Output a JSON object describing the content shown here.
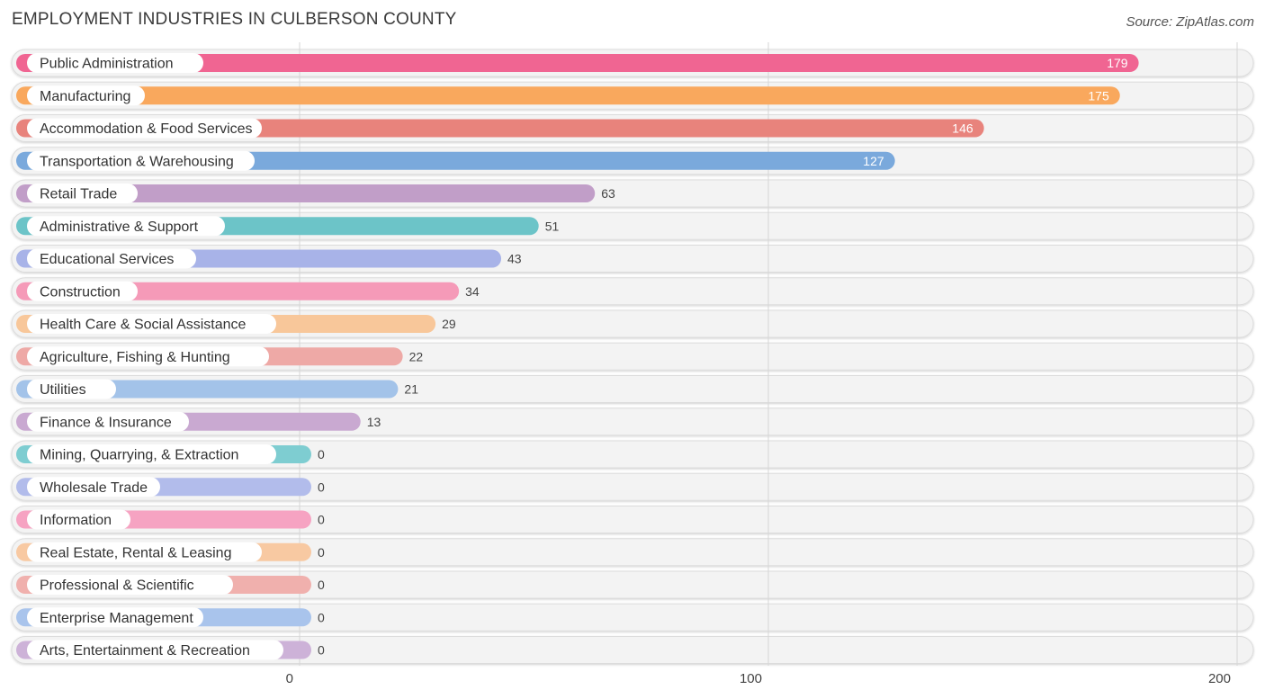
{
  "chart_data": {
    "type": "bar",
    "orientation": "horizontal",
    "title": "EMPLOYMENT INDUSTRIES IN CULBERSON COUNTY",
    "source": "Source: ZipAtlas.com",
    "xlim": [
      0,
      200
    ],
    "ticks": [
      0,
      100,
      200
    ],
    "grid": true,
    "categories": [
      "Public Administration",
      "Manufacturing",
      "Accommodation & Food Services",
      "Transportation & Warehousing",
      "Retail Trade",
      "Administrative & Support",
      "Educational Services",
      "Construction",
      "Health Care & Social Assistance",
      "Agriculture, Fishing & Hunting",
      "Utilities",
      "Finance & Insurance",
      "Mining, Quarrying, & Extraction",
      "Wholesale Trade",
      "Information",
      "Real Estate, Rental & Leasing",
      "Professional & Scientific",
      "Enterprise Management",
      "Arts, Entertainment & Recreation"
    ],
    "values": [
      179,
      175,
      146,
      127,
      63,
      51,
      43,
      34,
      29,
      22,
      21,
      13,
      0,
      0,
      0,
      0,
      0,
      0,
      0
    ],
    "colors": [
      "#f06592",
      "#f9a85d",
      "#e8837c",
      "#7aa9dc",
      "#c19ec8",
      "#6cc4c8",
      "#a8b3e8",
      "#f59ab8",
      "#f8c79a",
      "#eea9a6",
      "#a3c3e9",
      "#c9a9d1",
      "#7ecdd1",
      "#b2bceb",
      "#f6a3c2",
      "#f8c9a2",
      "#f0b0ad",
      "#a9c4ec",
      "#cdb2d8"
    ]
  }
}
